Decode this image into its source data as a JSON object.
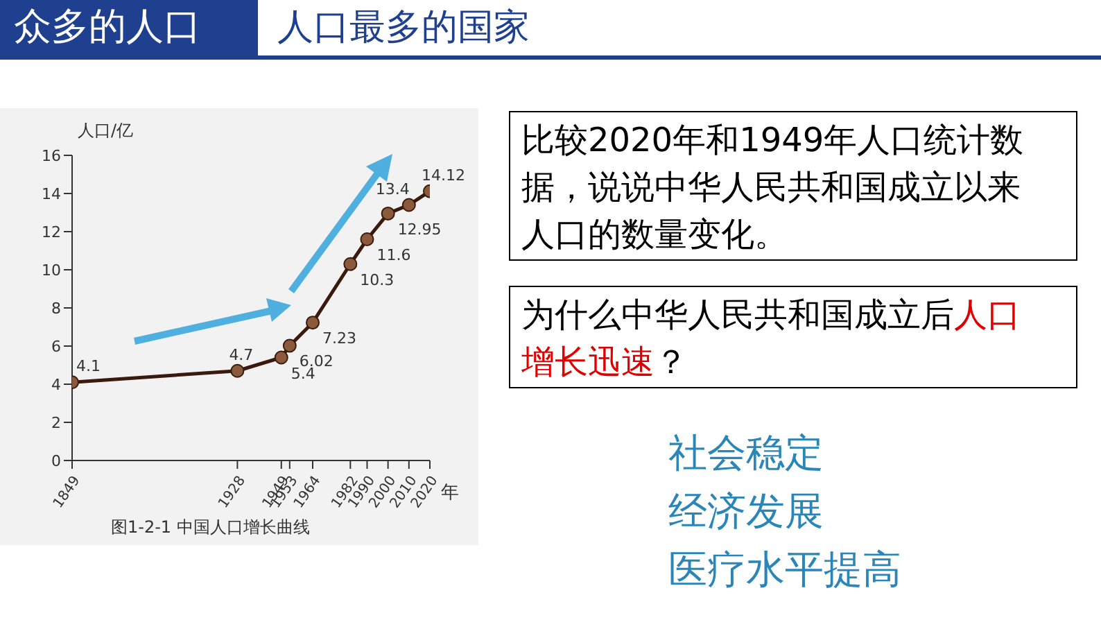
{
  "chart_data": {
    "type": "line",
    "title": "众多的人口",
    "subtitle": "人口最多的国家",
    "xlabel": "年",
    "ylabel": "人口/亿",
    "x": [
      1849,
      1928,
      1949,
      1953,
      1964,
      1982,
      1990,
      2000,
      2010,
      2020
    ],
    "series": [
      {
        "color": "#3a1a0c",
        "values": [
          4.1,
          4.7,
          5.4,
          6.02,
          7.23,
          10.3,
          11.6,
          12.95,
          13.4,
          14.12
        ],
        "value_labels": [
          "4.1",
          "4.7",
          "5.4",
          "6.02",
          "7.23",
          "10.3",
          "11.6",
          "12.95",
          "13.4",
          "14.12"
        ]
      }
    ],
    "xlim": [
      1849,
      2020
    ],
    "xticks": [
      1849,
      1928,
      1949,
      1953,
      1964,
      1982,
      1990,
      2000,
      2010,
      2020
    ],
    "ylim": [
      0,
      16
    ],
    "yticks": [
      0,
      2,
      4,
      6,
      8,
      10,
      12,
      14,
      16
    ],
    "marker": "circle",
    "line_style": "solid",
    "grid": false,
    "legend": false,
    "annotations": [
      "图1-2-1 中国人口增长曲线",
      "比较2020年和1949年人口统计数据，说说中华人民共和国成立以来人口的数量变化。",
      "为什么中华人民共和国成立后",
      "人口增长迅速",
      "？",
      "社会稳定",
      "经济发展",
      "医疗水平提高"
    ]
  }
}
